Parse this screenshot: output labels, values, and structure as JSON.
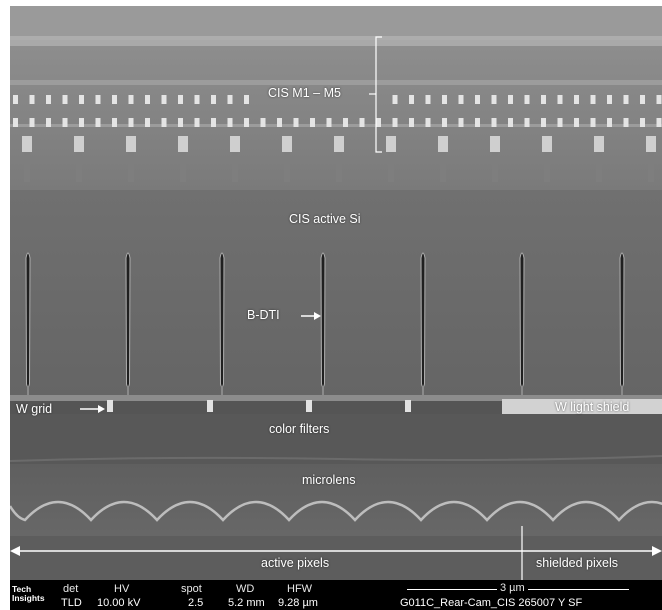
{
  "annotations": {
    "metal_layers": "CIS M1 – M5",
    "active_si": "CIS active Si",
    "bdti": "B-DTI",
    "w_grid": "W grid",
    "w_light_shield": "W light shield",
    "color_filters": "color filters",
    "microlens": "microlens",
    "active_pixels": "active pixels",
    "shielded_pixels": "shielded pixels"
  },
  "databar": {
    "logo_line1": "Tech",
    "logo_line2": "Insights",
    "headers": {
      "det": "det",
      "hv": "HV",
      "spot": "spot",
      "wd": "WD",
      "hfw": "HFW"
    },
    "values": {
      "det": "TLD",
      "hv": "10.00 kV",
      "spot": "2.5",
      "wd": "5.2 mm",
      "hfw": "9.28 µm"
    },
    "scale_bar": "3 µm",
    "sample_id": "G011C_Rear-Cam_CIS 265007 Y SF"
  },
  "colors": {
    "metal_stack": "#8a8a8a",
    "silicon": "#6e6e6e",
    "filters": "#5a5a5a",
    "microlens": "#626262",
    "annotation": "#ffffff",
    "databar": "#000000"
  }
}
